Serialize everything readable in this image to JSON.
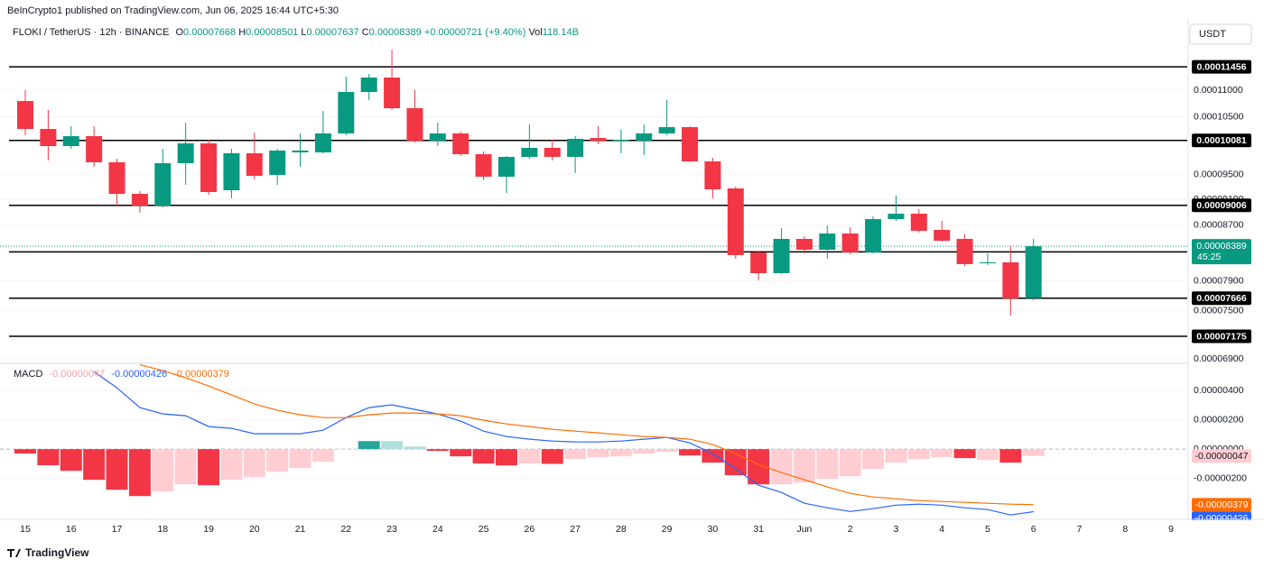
{
  "header": {
    "publisher": "BeInCrypto1 published on TradingView.com, Jun 06, 2025 16:44 UTC+5:30",
    "symbol": "FLOKI / TetherUS · 12h · BINANCE",
    "open_label": "O",
    "high_label": "H",
    "low_label": "L",
    "close_label": "C",
    "change": "+0.00000721 (+9.40%)",
    "volume_label": "Vol",
    "volume": "118.14B",
    "currency": "USDT",
    "countdown": "45:25",
    "brand": "TradingView"
  },
  "chart_data": [
    {
      "type": "candlestick",
      "log_scale": true,
      "ylim": [
        6.857e-05,
        0.00012351
      ],
      "yticks": [
        {
          "value": 0.00011,
          "label": "0.00011000"
        },
        {
          "value": 0.000105,
          "label": "0.00010500"
        },
        {
          "value": 9.5e-05,
          "label": "0.00009500"
        },
        {
          "value": 9.1e-05,
          "label": "0.00009100"
        },
        {
          "value": 8.7e-05,
          "label": "0.00008700"
        },
        {
          "value": 7.9e-05,
          "label": "0.00007900"
        },
        {
          "value": 7.5e-05,
          "label": "0.00007500"
        },
        {
          "value": 6.9e-05,
          "label": "0.00006900"
        }
      ],
      "up_color": "#089981",
      "down_color": "#f23645",
      "open": [
        0.00010795,
        0.00010284,
        9.983e-05,
        0.00010156,
        9.706e-05,
        9.188e-05,
        9.003e-05,
        9.69e-05,
        0.0001003,
        9.246e-05,
        9.859e-05,
        9.495e-05,
        9.874e-05,
        9.874e-05,
        0.00010204,
        0.00010966,
        0.00011244,
        0.00010661,
        0.00010077,
        0.00010204,
        9.843e-05,
        9.466e-05,
        9.797e-05,
        9.952e-05,
        9.797e-05,
        0.00010124,
        0.00010077,
        0.00010077,
        0.00010204,
        0.00010316,
        9.721e-05,
        9.275e-05,
        8.3e-05,
        8.006e-05,
        8.497e-05,
        8.339e-05,
        8.577e-05,
        8.3e-05,
        8.794e-05,
        8.877e-05,
        8.631e-05,
        8.497e-05,
        8.145e-05,
        8.158e-05,
        7.668e-05
      ],
      "high": [
        0.00011,
        0.00010628,
        0.00010333,
        0.00010333,
        9.766e-05,
        9.232e-05,
        9.936e-05,
        0.00010397,
        0.00010093,
        9.936e-05,
        0.0001022,
        9.936e-05,
        0.00010204,
        0.00010611,
        0.00011261,
        0.00011314,
        0.00011802,
        0.00011,
        0.00010397,
        0.00010236,
        9.89e-05,
        9.812e-05,
        0.00010365,
        0.00010093,
        0.00010156,
        0.00010333,
        0.00010268,
        0.00010365,
        0.00010812,
        0.00010333,
        9.782e-05,
        9.304e-05,
        8.326e-05,
        8.658e-05,
        8.537e-05,
        8.698e-05,
        8.671e-05,
        8.836e-05,
        9.16e-05,
        8.947e-05,
        8.767e-05,
        8.564e-05,
        8.287e-05,
        8.391e-05,
        8.501e-05
      ],
      "low": [
        0.00010172,
        9.736e-05,
        9.936e-05,
        9.63e-05,
        9.003e-05,
        8.891e-05,
        8.975e-05,
        9.333e-05,
        9.174e-05,
        9.117e-05,
        9.421e-05,
        9.333e-05,
        9.63e-05,
        9.859e-05,
        0.00010172,
        0.00010812,
        0.00010628,
        0.00010046,
        9.983e-05,
        9.812e-05,
        9.407e-05,
        9.203e-05,
        9.766e-05,
        9.736e-05,
        9.525e-05,
        0.00010014,
        9.859e-05,
        9.828e-05,
        0.00010172,
        9.706e-05,
        9.117e-05,
        8.209e-05,
        7.907e-05,
        7.994e-05,
        8.287e-05,
        8.209e-05,
        8.274e-05,
        8.287e-05,
        8.767e-05,
        8.59e-05,
        8.457e-05,
        8.107e-05,
        8.12e-05,
        7.439e-05,
        7.637e-05
      ],
      "close": [
        0.00010284,
        9.983e-05,
        0.00010156,
        9.706e-05,
        9.188e-05,
        9.003e-05,
        9.69e-05,
        0.0001003,
        9.217e-05,
        9.859e-05,
        9.48e-05,
        9.905e-05,
        9.905e-05,
        0.00010204,
        0.00010966,
        0.00011244,
        0.00010661,
        0.00010077,
        0.00010204,
        9.843e-05,
        9.466e-05,
        9.797e-05,
        9.952e-05,
        9.797e-05,
        0.00010109,
        0.00010077,
        0.00010093,
        0.00010204,
        0.00010316,
        9.721e-05,
        9.26e-05,
        8.261e-05,
        8.006e-05,
        8.497e-05,
        8.339e-05,
        8.577e-05,
        8.3e-05,
        8.794e-05,
        8.877e-05,
        8.617e-05,
        8.47e-05,
        8.133e-05,
        8.158e-05,
        7.663e-05,
        8.389e-05
      ],
      "levels": [
        0.00011456,
        0.00010081,
        9.006e-05,
        8.308e-05,
        7.666e-05,
        7.175e-05
      ],
      "level_color": "#000000",
      "x_labels": [
        "15",
        "16",
        "17",
        "18",
        "19",
        "20",
        "21",
        "22",
        "23",
        "24",
        "25",
        "26",
        "27",
        "28",
        "29",
        "30",
        "31",
        "Jun",
        "2",
        "3",
        "4",
        "5",
        "6",
        "7",
        "8",
        "9"
      ]
    },
    {
      "type": "macd",
      "title": "MACD",
      "ylim": [
        -4.6e-06,
        5.85e-06
      ],
      "yticks": [
        {
          "value": 4e-06,
          "label": "0.00000400"
        },
        {
          "value": 2e-06,
          "label": "0.00000200"
        },
        {
          "value": 0,
          "label": "0.00000000"
        },
        {
          "value": -2e-06,
          "label": "-0.00000200"
        }
      ],
      "series": [
        {
          "kind": "histogram",
          "color": "#ffcdd2",
          "values": [
            -3e-07,
            -1.1e-06,
            -1.48e-06,
            -2.09e-06,
            -2.77e-06,
            -3.2e-06,
            -2.89e-06,
            -2.4e-06,
            -2.46e-06,
            -2.09e-06,
            -1.91e-06,
            -1.54e-06,
            -1.29e-06,
            -8.6e-07,
            -2e-08,
            5.5e-07,
            5.5e-07,
            1.8e-07,
            -1.2e-07,
            -4.9e-07,
            -9.8e-07,
            -1.11e-06,
            -9.8e-07,
            -1e-06,
            -6.8e-07,
            -5.5e-07,
            -4.9e-07,
            -3e-07,
            -1.8e-07,
            -4.3e-07,
            -9.2e-07,
            -1.78e-06,
            -2.4e-06,
            -2.4e-06,
            -2.28e-06,
            -2.03e-06,
            -1.85e-06,
            -1.35e-06,
            -9.2e-07,
            -6.8e-07,
            -5.5e-07,
            -6.1e-07,
            -7.4e-07,
            -9.2e-07,
            -4.7e-07
          ],
          "colors": [
            "#f23645",
            "#f23645",
            "#f23645",
            "#f23645",
            "#f23645",
            "#f23645",
            "#ffcdd2",
            "#ffcdd2",
            "#f23645",
            "#ffcdd2",
            "#ffcdd2",
            "#ffcdd2",
            "#ffcdd2",
            "#ffcdd2",
            "#ffcdd2",
            "#26a69a",
            "#b2dfdb",
            "#b2dfdb",
            "#f23645",
            "#f23645",
            "#f23645",
            "#f23645",
            "#ffcdd2",
            "#f23645",
            "#ffcdd2",
            "#ffcdd2",
            "#ffcdd2",
            "#ffcdd2",
            "#ffcdd2",
            "#f23645",
            "#f23645",
            "#f23645",
            "#f23645",
            "#ffcdd2",
            "#ffcdd2",
            "#ffcdd2",
            "#ffcdd2",
            "#ffcdd2",
            "#ffcdd2",
            "#ffcdd2",
            "#ffcdd2",
            "#f23645",
            "#ffcdd2",
            "#f23645",
            "#ffcdd2"
          ],
          "last_label": "-0.00000047"
        },
        {
          "kind": "line",
          "color": "#2962ff",
          "values": [
            null,
            null,
            null,
            5.29e-06,
            4.18e-06,
            2.83e-06,
            2.4e-06,
            2.28e-06,
            1.54e-06,
            1.42e-06,
            1.05e-06,
            1.05e-06,
            1.05e-06,
            1.29e-06,
            2.15e-06,
            2.83e-06,
            3.02e-06,
            2.71e-06,
            2.4e-06,
            1.91e-06,
            1.23e-06,
            8.6e-07,
            6.8e-07,
            5.5e-07,
            4.9e-07,
            4.9e-07,
            5.5e-07,
            6.8e-07,
            8e-07,
            4.3e-07,
            -3.1e-07,
            -1.35e-06,
            -2.46e-06,
            -2.95e-06,
            -3.69e-06,
            -4e-06,
            -4.25e-06,
            -4.06e-06,
            -3.82e-06,
            -3.75e-06,
            -3.82e-06,
            -4e-06,
            -4.12e-06,
            -4.49e-06,
            -4.26e-06
          ],
          "last_label": "-0.00000426"
        },
        {
          "kind": "line",
          "color": "#ff6d00",
          "values": [
            null,
            null,
            null,
            null,
            null,
            5.75e-06,
            5.35e-06,
            4.86e-06,
            4.31e-06,
            3.69e-06,
            3.08e-06,
            2.65e-06,
            2.34e-06,
            2.15e-06,
            2.15e-06,
            2.34e-06,
            2.46e-06,
            2.46e-06,
            2.4e-06,
            2.28e-06,
            1.97e-06,
            1.72e-06,
            1.54e-06,
            1.35e-06,
            1.23e-06,
            1.11e-06,
            9.8e-07,
            8.6e-07,
            8e-07,
            6.8e-07,
            3.1e-07,
            -3.1e-07,
            -1.05e-06,
            -1.6e-06,
            -2.09e-06,
            -2.58e-06,
            -3.02e-06,
            -3.26e-06,
            -3.38e-06,
            -3.51e-06,
            -3.57e-06,
            -3.63e-06,
            -3.69e-06,
            -3.75e-06,
            -3.79e-06
          ],
          "last_label": "-0.00000379"
        }
      ]
    }
  ]
}
